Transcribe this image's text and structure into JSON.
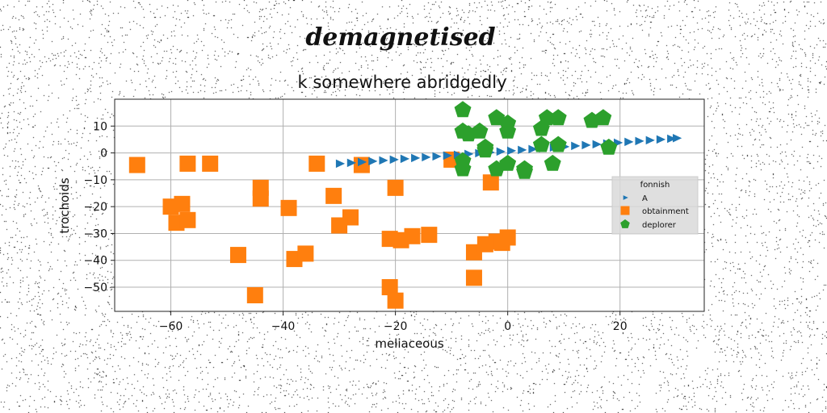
{
  "chart_data": {
    "type": "scatter",
    "suptitle": "demagnetised",
    "title": "k somewhere abridgedly",
    "xlabel": "meliaceous",
    "ylabel": "trochoids",
    "xlim": [
      -70,
      35
    ],
    "ylim": [
      -59,
      20
    ],
    "xticks": [
      -60,
      -40,
      -20,
      0,
      20
    ],
    "yticks": [
      -50,
      -40,
      -30,
      -20,
      -10,
      0,
      10
    ],
    "xtick_labels": [
      "−60",
      "−40",
      "−20",
      "0",
      "20"
    ],
    "ytick_labels": [
      "−50",
      "−40",
      "−30",
      "−20",
      "−10",
      "0",
      "10"
    ],
    "grid": true,
    "legend": {
      "title": "fonnish",
      "placement": "center-right"
    },
    "colors": {
      "A": "#1f77b4",
      "obtainment": "#ff7f0e",
      "deplorer": "#2ca02c"
    },
    "series": [
      {
        "name": "A",
        "marker": "triangle-right",
        "x": [
          -30.0,
          -28.0,
          -26.1,
          -24.2,
          -22.3,
          -20.4,
          -18.5,
          -16.6,
          -14.7,
          -12.8,
          -10.9,
          -9.0,
          -7.1,
          -5.2,
          -3.3,
          -1.4,
          0.5,
          2.4,
          4.3,
          6.2,
          8.1,
          10.0,
          11.9,
          13.8,
          15.7,
          17.6,
          19.5,
          21.4,
          23.3,
          25.2,
          27.1,
          29.0,
          30.0
        ],
        "y": [
          -4.0,
          -3.7,
          -3.4,
          -3.1,
          -2.8,
          -2.5,
          -2.2,
          -1.9,
          -1.6,
          -1.3,
          -1.0,
          -0.7,
          -0.4,
          -0.1,
          0.2,
          0.5,
          0.8,
          1.1,
          1.4,
          1.7,
          2.0,
          2.3,
          2.6,
          2.9,
          3.2,
          3.5,
          3.8,
          4.1,
          4.4,
          4.7,
          5.0,
          5.3,
          5.5
        ]
      },
      {
        "name": "obtainment",
        "marker": "square",
        "x": [
          -66,
          -57,
          -53,
          -34,
          -26,
          -60,
          -58,
          -59,
          -57,
          -44,
          -44,
          -39,
          -31,
          -28,
          -20,
          -48,
          -38,
          -36,
          -30,
          -45,
          -21,
          -19,
          -17,
          -14,
          -21,
          -20,
          -10,
          -3,
          -6,
          -4,
          -2,
          0,
          -1,
          -6
        ],
        "y": [
          -4.5,
          -4,
          -4,
          -4,
          -4.5,
          -20,
          -19,
          -26,
          -25,
          -13,
          -17,
          -20.5,
          -16,
          -24,
          -13,
          -38,
          -39.5,
          -37.5,
          -27,
          -53,
          -32,
          -32.5,
          -31,
          -30.5,
          -50,
          -55,
          -2.5,
          -11,
          -37,
          -34,
          -33,
          -31.5,
          -33.5,
          -46.5
        ]
      },
      {
        "name": "deplorer",
        "marker": "pentagon",
        "x": [
          -8,
          -8,
          -7,
          -5,
          -4,
          -8,
          -8,
          -2,
          0,
          0,
          6,
          7,
          9,
          15,
          17,
          18,
          -4,
          -2,
          0,
          3,
          3,
          6,
          8,
          9
        ],
        "y": [
          16,
          8,
          7,
          8,
          2,
          -3,
          -6,
          13,
          8,
          11,
          9,
          13,
          13,
          12,
          13,
          2,
          1,
          -6,
          -4,
          -6,
          -7,
          3,
          -4,
          3
        ]
      }
    ]
  }
}
